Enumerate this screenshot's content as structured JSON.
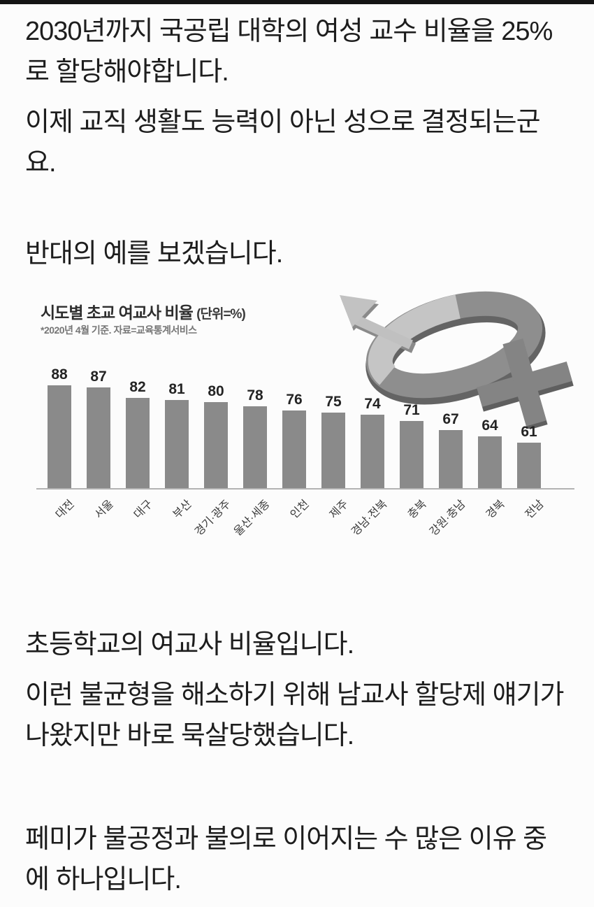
{
  "page": {
    "paragraphs": [
      "2030년까지 국공립 대학의 여성 교수 비율을 25%로 할당해야합니다.",
      "이제 교직 생활도 능력이 아닌 성으로 결정되는군요.",
      "반대의 예를 보겠습니다.",
      "초등학교의 여교사 비율입니다.",
      "이런 불균형을 해소하기 위해 남교사 할당제 얘기가 나왔지만 바로 묵살당했습니다.",
      "페미가 불공정과 불의로 이어지는 수 많은 이유 중에 하나입니다."
    ]
  },
  "chart_data": {
    "type": "bar",
    "title": "시도별 초교 여교사 비율",
    "title_unit": "(단위=%)",
    "subtitle": "*2020년 4월 기준. 자료=교육통계서비스",
    "categories": [
      "대전",
      "서울",
      "대구",
      "부산",
      "경기·광주",
      "울산·세종",
      "인천",
      "제주",
      "경남·전북",
      "충북",
      "강원·충남",
      "경북",
      "전남"
    ],
    "values": [
      88,
      87,
      82,
      81,
      80,
      78,
      76,
      75,
      74,
      71,
      67,
      64,
      61
    ],
    "ylabel": "%",
    "ylim": [
      40,
      95
    ],
    "grid": false,
    "legend": "none",
    "value_labels_shown": true,
    "bar_color": "#8a8a8a",
    "value_label_color": "#242424",
    "axis_line_color": "#b3b3b3",
    "decoration_icon": "male-female-gender-symbol-3d"
  }
}
